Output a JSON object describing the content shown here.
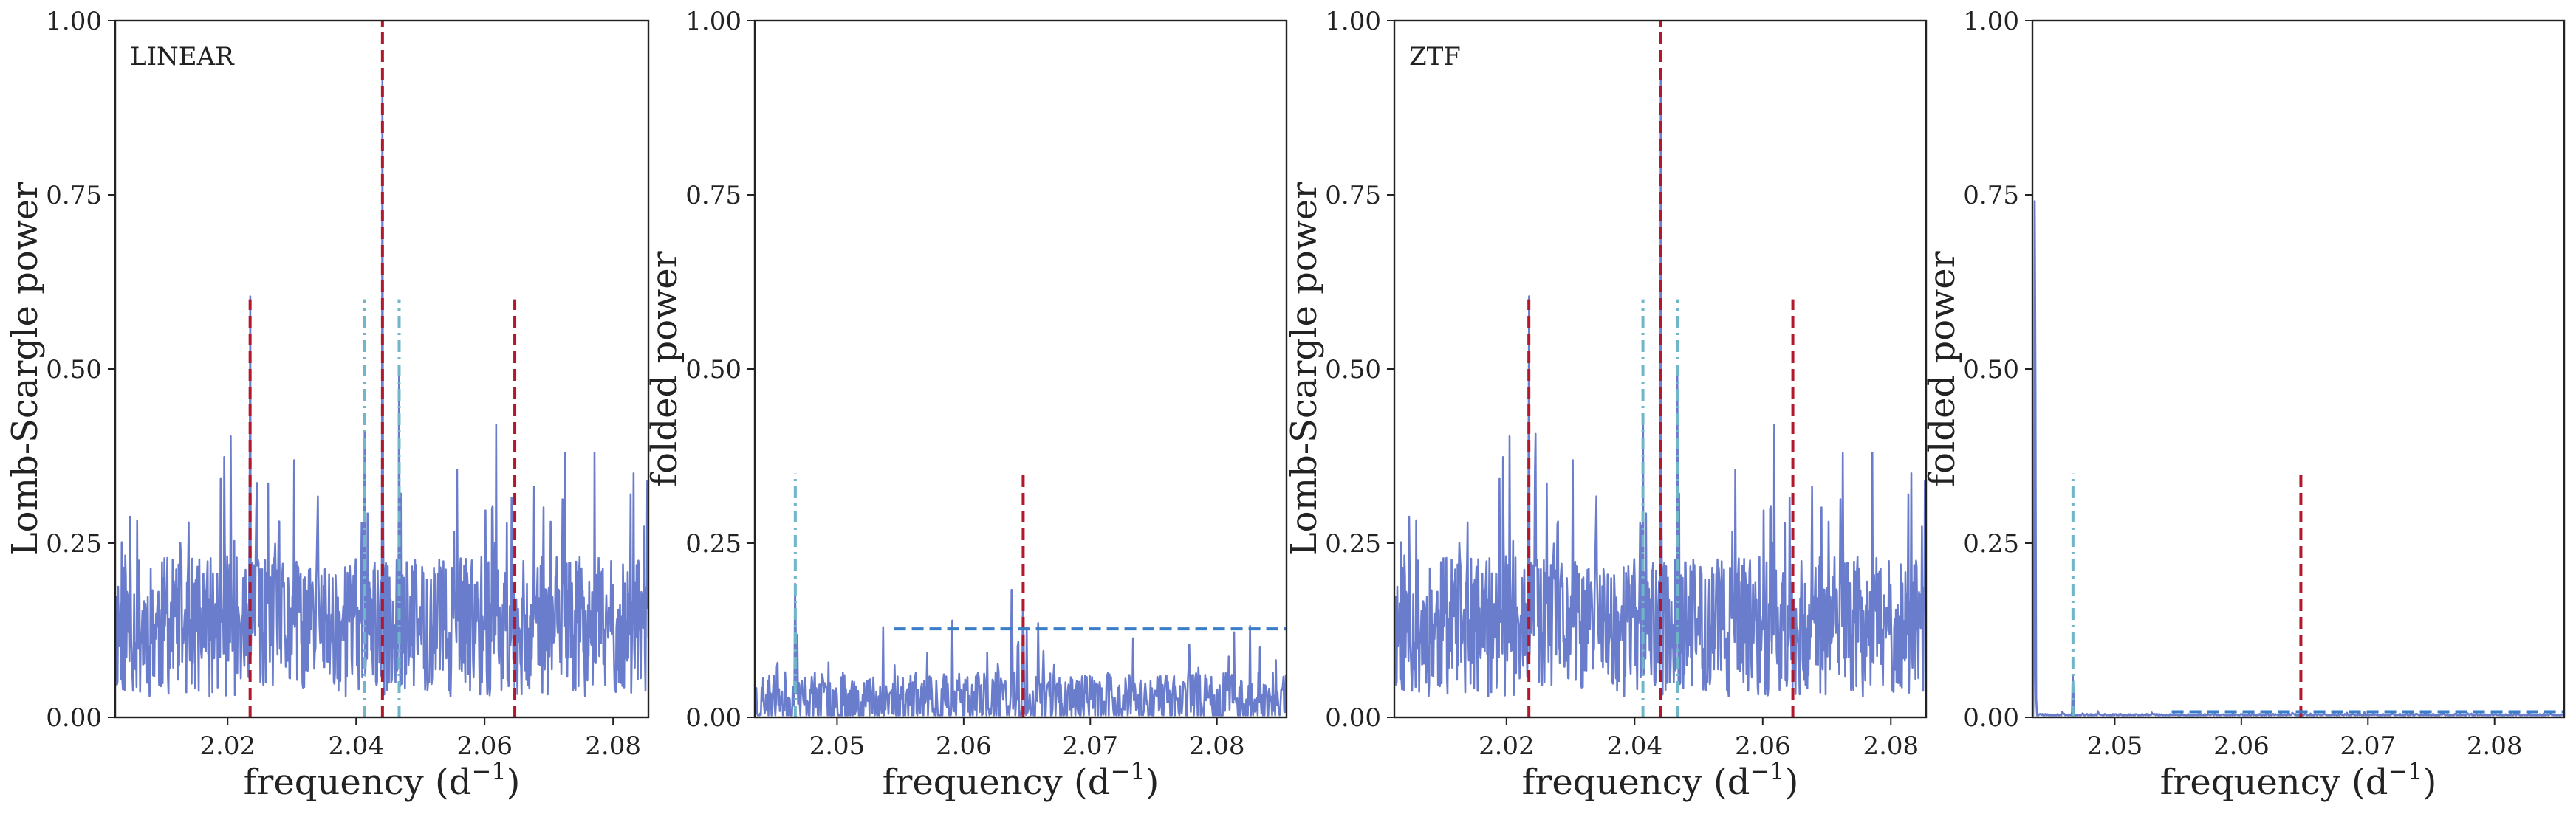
{
  "chart_data": [
    {
      "type": "line",
      "panel_label": "LINEAR",
      "xlabel": "frequency (d",
      "xlabel_sup": "−1",
      "xlabel_end": ")",
      "ylabel": "Lomb-Scargle power",
      "xlim": [
        2.0025,
        2.0855
      ],
      "ylim": [
        0,
        1
      ],
      "xticks": [
        2.02,
        2.04,
        2.06,
        2.08
      ],
      "xtick_labels": [
        "2.02",
        "2.04",
        "2.06",
        "2.08"
      ],
      "yticks": [
        0,
        0.25,
        0.5,
        0.75,
        1.0
      ],
      "ytick_labels": [
        "0.00",
        "0.25",
        "0.50",
        "0.75",
        "1.00"
      ],
      "grid": false,
      "series": [
        {
          "style": "line",
          "color": "#6a7ccc",
          "peaks": [
            [
              2.0235,
              0.67
            ],
            [
              2.0245,
              0.43
            ],
            [
              2.0413,
              0.45
            ],
            [
              2.0441,
              0.93
            ],
            [
              2.0467,
              0.55
            ],
            [
              2.0612,
              0.41
            ],
            [
              2.0618,
              0.42
            ],
            [
              2.0195,
              0.43
            ],
            [
              2.0205,
              0.42
            ],
            [
              2.034,
              0.4
            ],
            [
              2.028,
              0.38
            ],
            [
              2.0725,
              0.38
            ]
          ],
          "baseline_mean": 0.13,
          "noise_spread": 0.1,
          "n_points": 900,
          "seed": 11
        }
      ],
      "vlines": [
        {
          "x": 2.0235,
          "ymin": 0,
          "ymax": 0.6,
          "color": "#b2182b",
          "style": "dashed"
        },
        {
          "x": 2.0441,
          "ymin": 0,
          "ymax": 1.0,
          "color": "#b2182b",
          "style": "dashed"
        },
        {
          "x": 2.0647,
          "ymin": 0,
          "ymax": 0.6,
          "color": "#b2182b",
          "style": "dashed"
        },
        {
          "x": 2.0413,
          "ymin": 0,
          "ymax": 0.6,
          "color": "#6fb6c8",
          "style": "dashdot"
        },
        {
          "x": 2.0467,
          "ymin": 0,
          "ymax": 0.6,
          "color": "#6fb6c8",
          "style": "dashdot"
        }
      ],
      "hlines": []
    },
    {
      "type": "line",
      "panel_label": "",
      "xlabel": "frequency (d",
      "xlabel_sup": "−1",
      "xlabel_end": ")",
      "ylabel": "folded power",
      "xlim": [
        2.0435,
        2.0855
      ],
      "ylim": [
        0,
        1
      ],
      "xticks": [
        2.05,
        2.06,
        2.07,
        2.08
      ],
      "xtick_labels": [
        "2.05",
        "2.06",
        "2.07",
        "2.08"
      ],
      "yticks": [
        0,
        0.25,
        0.5,
        0.75,
        1.0
      ],
      "ytick_labels": [
        "0.00",
        "0.25",
        "0.50",
        "0.75",
        "1.00"
      ],
      "grid": false,
      "series": [
        {
          "style": "line",
          "color": "#6a7ccc",
          "peaks": [
            [
              2.0467,
              0.22
            ],
            [
              2.0638,
              0.21
            ],
            [
              2.0647,
              0.19
            ],
            [
              2.0778,
              0.12
            ],
            [
              2.0558,
              0.06
            ]
          ],
          "baseline_mean": 0.025,
          "noise_spread": 0.04,
          "n_points": 700,
          "seed": 23
        }
      ],
      "vlines": [
        {
          "x": 2.0467,
          "ymin": 0,
          "ymax": 0.35,
          "color": "#6fb6c8",
          "style": "dashdot"
        },
        {
          "x": 2.0647,
          "ymin": 0,
          "ymax": 0.35,
          "color": "#b2182b",
          "style": "dashed"
        }
      ],
      "hlines": [
        {
          "y": 0.127,
          "xmin": 2.0545,
          "xmax": 2.0855,
          "color": "#3a7dc8",
          "style": "dashed"
        }
      ]
    },
    {
      "type": "line",
      "panel_label": "ZTF",
      "xlabel": "frequency (d",
      "xlabel_sup": "−1",
      "xlabel_end": ")",
      "ylabel": "Lomb-Scargle power",
      "xlim": [
        2.0025,
        2.0855
      ],
      "ylim": [
        0,
        1
      ],
      "xticks": [
        2.02,
        2.04,
        2.06,
        2.08
      ],
      "xtick_labels": [
        "2.02",
        "2.04",
        "2.06",
        "2.08"
      ],
      "yticks": [
        0,
        0.25,
        0.5,
        0.75,
        1.0
      ],
      "ytick_labels": [
        "0.00",
        "0.25",
        "0.50",
        "0.75",
        "1.00"
      ],
      "grid": false,
      "series": [
        {
          "style": "line",
          "color": "#6a7ccc",
          "peaks": [
            [
              2.0235,
              0.67
            ],
            [
              2.0245,
              0.52
            ],
            [
              2.0413,
              0.46
            ],
            [
              2.0441,
              0.93
            ],
            [
              2.0467,
              0.55
            ],
            [
              2.0612,
              0.41
            ],
            [
              2.0618,
              0.42
            ],
            [
              2.0195,
              0.43
            ],
            [
              2.0205,
              0.42
            ],
            [
              2.034,
              0.4
            ],
            [
              2.028,
              0.38
            ],
            [
              2.0725,
              0.38
            ]
          ],
          "baseline_mean": 0.13,
          "noise_spread": 0.1,
          "n_points": 900,
          "seed": 11
        }
      ],
      "vlines": [
        {
          "x": 2.0235,
          "ymin": 0,
          "ymax": 0.6,
          "color": "#b2182b",
          "style": "dashed"
        },
        {
          "x": 2.0441,
          "ymin": 0,
          "ymax": 1.0,
          "color": "#b2182b",
          "style": "dashed"
        },
        {
          "x": 2.0647,
          "ymin": 0,
          "ymax": 0.6,
          "color": "#b2182b",
          "style": "dashed"
        },
        {
          "x": 2.0413,
          "ymin": 0,
          "ymax": 0.6,
          "color": "#6fb6c8",
          "style": "dashdot"
        },
        {
          "x": 2.0467,
          "ymin": 0,
          "ymax": 0.6,
          "color": "#6fb6c8",
          "style": "dashdot"
        }
      ],
      "hlines": []
    },
    {
      "type": "line",
      "panel_label": "",
      "xlabel": "frequency (d",
      "xlabel_sup": "−1",
      "xlabel_end": ")",
      "ylabel": "folded power",
      "xlim": [
        2.0435,
        2.0855
      ],
      "ylim": [
        0,
        1
      ],
      "xticks": [
        2.05,
        2.06,
        2.07,
        2.08
      ],
      "xtick_labels": [
        "2.05",
        "2.06",
        "2.07",
        "2.08"
      ],
      "yticks": [
        0,
        0.25,
        0.5,
        0.75,
        1.0
      ],
      "ytick_labels": [
        "0.00",
        "0.25",
        "0.50",
        "0.75",
        "1.00"
      ],
      "grid": false,
      "series": [
        {
          "style": "line",
          "color": "#6a7ccc",
          "peaks": [
            [
              2.0437,
              0.85
            ],
            [
              2.0467,
              0.07
            ]
          ],
          "baseline_mean": 0.003,
          "noise_spread": 0.002,
          "n_points": 700,
          "seed": 5
        }
      ],
      "vlines": [
        {
          "x": 2.0467,
          "ymin": 0,
          "ymax": 0.35,
          "color": "#6fb6c8",
          "style": "dashdot"
        },
        {
          "x": 2.0647,
          "ymin": 0,
          "ymax": 0.35,
          "color": "#b2182b",
          "style": "dashed"
        }
      ],
      "hlines": [
        {
          "y": 0.008,
          "xmin": 2.0545,
          "xmax": 2.0855,
          "color": "#3a7dc8",
          "style": "dashed"
        }
      ]
    }
  ]
}
